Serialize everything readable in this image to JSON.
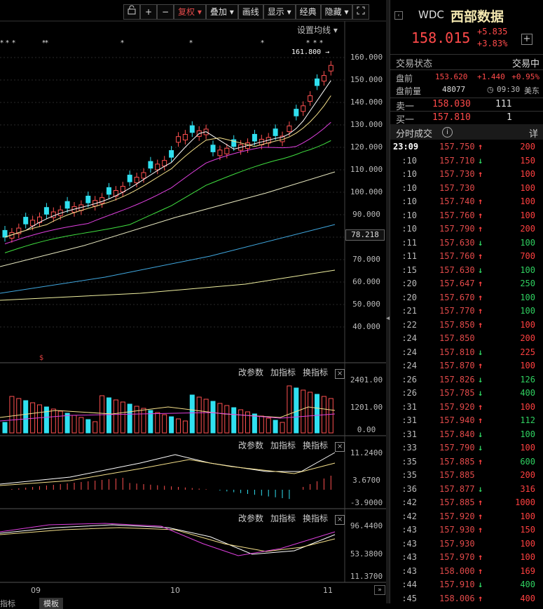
{
  "toolbar": {
    "lock_icon": "lock-icon",
    "plus_label": "+",
    "minus_label": "−",
    "fuquan_label": "复权",
    "diejia_label": "叠加",
    "huaxian_label": "画线",
    "xianshi_label": "显示",
    "jingdian_label": "经典",
    "yincang_label": "隐藏",
    "expand_icon": "fullscreen-icon"
  },
  "settings_ma_label": "设置均线",
  "chart_data": [
    {
      "type": "candlestick",
      "title": "",
      "price_ticks": [
        "160.000",
        "150.000",
        "140.000",
        "130.000",
        "120.000",
        "110.000",
        "100.000",
        "90.000",
        "80.000",
        "70.000",
        "60.000",
        "50.000",
        "40.000"
      ],
      "current_price_label": "78.218",
      "high_annotation": "161.800",
      "x_labels": [
        "09",
        "10",
        "11"
      ],
      "ylim": [
        40,
        160
      ]
    },
    {
      "type": "bar",
      "title": "volume",
      "ticks": [
        "2401.00",
        "1201.00",
        "0.00"
      ]
    },
    {
      "type": "line",
      "title": "macd",
      "ticks": [
        "11.2400",
        "3.6700",
        "-3.9000"
      ]
    },
    {
      "type": "line",
      "title": "kdj",
      "ticks": [
        "96.4400",
        "53.3800",
        "11.3700"
      ]
    }
  ],
  "panel_tools": {
    "change_params": "改参数",
    "add_indicator": "加指标",
    "switch_indicator": "换指标"
  },
  "bottom_tabs": [
    "指标",
    "模板"
  ],
  "stock": {
    "code": "WDC",
    "name": "西部数据",
    "price": "158.015",
    "change": "+5.835",
    "change_pct": "+3.83%",
    "add_icon": "plus-icon"
  },
  "status": {
    "label": "交易状态",
    "value": "交易中"
  },
  "premarket": {
    "label": "盘前",
    "price": "153.620",
    "change": "+1.440",
    "pct": "+0.95%",
    "vol_label": "盘前量",
    "vol": "48077",
    "time": "09:30",
    "zone": "美东"
  },
  "quotes": {
    "sell_label": "卖一",
    "sell_price": "158.030",
    "sell_vol": "111",
    "buy_label": "买一",
    "buy_price": "157.810",
    "buy_vol": "1"
  },
  "ticks_header": {
    "label": "分时成交",
    "detail": "详"
  },
  "ticks": [
    {
      "time": "23:09",
      "price": "157.750",
      "dir": "up",
      "vol": "200",
      "vc": "up"
    },
    {
      "time": ":10",
      "price": "157.710",
      "dir": "dn",
      "vol": "150",
      "vc": "up"
    },
    {
      "time": ":10",
      "price": "157.730",
      "dir": "up",
      "vol": "100",
      "vc": "up"
    },
    {
      "time": ":10",
      "price": "157.730",
      "dir": "",
      "vol": "100",
      "vc": "up"
    },
    {
      "time": ":10",
      "price": "157.740",
      "dir": "up",
      "vol": "100",
      "vc": "up"
    },
    {
      "time": ":10",
      "price": "157.760",
      "dir": "up",
      "vol": "100",
      "vc": "up"
    },
    {
      "time": ":10",
      "price": "157.790",
      "dir": "up",
      "vol": "200",
      "vc": "up"
    },
    {
      "time": ":11",
      "price": "157.630",
      "dir": "dn",
      "vol": "100",
      "vc": "dn"
    },
    {
      "time": ":11",
      "price": "157.760",
      "dir": "up",
      "vol": "700",
      "vc": "up"
    },
    {
      "time": ":15",
      "price": "157.630",
      "dir": "dn",
      "vol": "100",
      "vc": "dn"
    },
    {
      "time": ":20",
      "price": "157.647",
      "dir": "up",
      "vol": "250",
      "vc": "dn"
    },
    {
      "time": ":20",
      "price": "157.670",
      "dir": "up",
      "vol": "100",
      "vc": "dn"
    },
    {
      "time": ":21",
      "price": "157.770",
      "dir": "up",
      "vol": "100",
      "vc": "dn"
    },
    {
      "time": ":22",
      "price": "157.850",
      "dir": "up",
      "vol": "100",
      "vc": "up"
    },
    {
      "time": ":24",
      "price": "157.850",
      "dir": "",
      "vol": "200",
      "vc": "up"
    },
    {
      "time": ":24",
      "price": "157.810",
      "dir": "dn",
      "vol": "225",
      "vc": "up"
    },
    {
      "time": ":24",
      "price": "157.870",
      "dir": "up",
      "vol": "100",
      "vc": "up"
    },
    {
      "time": ":26",
      "price": "157.826",
      "dir": "dn",
      "vol": "126",
      "vc": "dn"
    },
    {
      "time": ":26",
      "price": "157.785",
      "dir": "dn",
      "vol": "400",
      "vc": "dn"
    },
    {
      "time": ":31",
      "price": "157.920",
      "dir": "up",
      "vol": "100",
      "vc": "up"
    },
    {
      "time": ":31",
      "price": "157.940",
      "dir": "up",
      "vol": "112",
      "vc": "dn"
    },
    {
      "time": ":31",
      "price": "157.840",
      "dir": "dn",
      "vol": "100",
      "vc": "dn"
    },
    {
      "time": ":33",
      "price": "157.790",
      "dir": "dn",
      "vol": "100",
      "vc": "up"
    },
    {
      "time": ":35",
      "price": "157.885",
      "dir": "up",
      "vol": "600",
      "vc": "dn"
    },
    {
      "time": ":35",
      "price": "157.885",
      "dir": "",
      "vol": "200",
      "vc": "up"
    },
    {
      "time": ":36",
      "price": "157.877",
      "dir": "dn",
      "vol": "316",
      "vc": "up"
    },
    {
      "time": ":42",
      "price": "157.885",
      "dir": "up",
      "vol": "1000",
      "vc": "up"
    },
    {
      "time": ":42",
      "price": "157.920",
      "dir": "up",
      "vol": "100",
      "vc": "up"
    },
    {
      "time": ":43",
      "price": "157.930",
      "dir": "up",
      "vol": "150",
      "vc": "up"
    },
    {
      "time": ":43",
      "price": "157.930",
      "dir": "",
      "vol": "100",
      "vc": "up"
    },
    {
      "time": ":43",
      "price": "157.970",
      "dir": "up",
      "vol": "100",
      "vc": "up"
    },
    {
      "time": ":43",
      "price": "158.000",
      "dir": "up",
      "vol": "169",
      "vc": "up"
    },
    {
      "time": ":44",
      "price": "157.910",
      "dir": "dn",
      "vol": "400",
      "vc": "dn"
    },
    {
      "time": ":45",
      "price": "158.006",
      "dir": "up",
      "vol": "400",
      "vc": "up"
    }
  ]
}
